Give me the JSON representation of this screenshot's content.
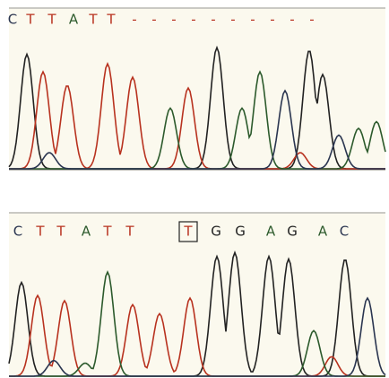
{
  "panels": [
    {
      "bases": [
        "C",
        "T",
        "T",
        "A",
        "T",
        "T",
        "-",
        "-",
        "-",
        "-",
        "-",
        "-",
        "-",
        "-",
        "-",
        "-"
      ]
    },
    {
      "bases": [
        "C",
        "T",
        "T",
        "A",
        "T",
        "T",
        "T",
        "G",
        "G",
        "A",
        "G",
        "A",
        "C"
      ],
      "boxed": 6
    }
  ],
  "base_colors": {
    "C": "#2a3550",
    "T": "#b8321f",
    "A": "#2c5a2c",
    "G": "#222222",
    "-": "#b8321f"
  }
}
